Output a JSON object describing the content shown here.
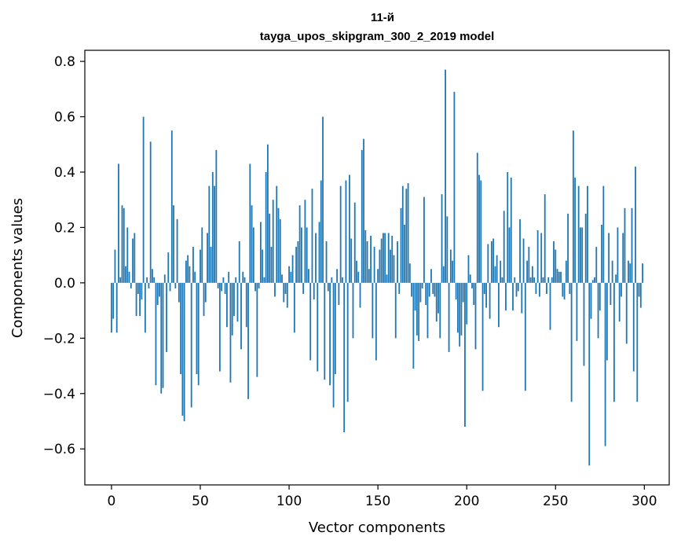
{
  "chart_data": {
    "type": "bar",
    "title": "11-й",
    "subtitle": "tayga_upos_skipgram_300_2_2019 model",
    "xlabel": "Vector components",
    "ylabel": "Components values",
    "xlim": [
      -15,
      314
    ],
    "ylim": [
      -0.73,
      0.84
    ],
    "xticks": [
      0,
      50,
      100,
      150,
      200,
      250,
      300
    ],
    "yticks": [
      -0.6,
      -0.4,
      -0.2,
      0.0,
      0.2,
      0.4,
      0.6,
      0.8
    ],
    "ytick_labels": [
      "−0.6",
      "−0.4",
      "−0.2",
      "0.0",
      "0.2",
      "0.4",
      "0.6",
      "0.8"
    ],
    "grid": false,
    "bar_color": "#1f77b4",
    "x_start": 0,
    "values": [
      -0.18,
      -0.13,
      0.12,
      -0.18,
      0.43,
      0.02,
      0.28,
      0.27,
      0.06,
      0.2,
      0.04,
      -0.02,
      0.16,
      0.18,
      -0.12,
      -0.04,
      -0.12,
      -0.06,
      0.6,
      -0.18,
      0.02,
      -0.02,
      0.51,
      0.05,
      0.02,
      -0.37,
      -0.08,
      -0.05,
      -0.4,
      -0.38,
      0.03,
      -0.25,
      0.11,
      -0.03,
      0.55,
      0.28,
      -0.02,
      0.23,
      -0.07,
      -0.33,
      -0.48,
      -0.5,
      0.08,
      0.1,
      0.06,
      -0.45,
      0.13,
      0.04,
      -0.33,
      -0.37,
      0.12,
      0.2,
      -0.12,
      -0.07,
      0.18,
      0.35,
      0.13,
      0.4,
      0.35,
      0.48,
      -0.02,
      -0.32,
      -0.03,
      0.02,
      -0.04,
      -0.16,
      0.04,
      -0.36,
      -0.19,
      -0.12,
      0.02,
      -0.14,
      0.15,
      -0.24,
      0.04,
      0.02,
      -0.16,
      -0.42,
      0.43,
      0.28,
      0.2,
      -0.03,
      -0.34,
      -0.02,
      0.22,
      0.12,
      0.02,
      0.4,
      0.5,
      0.25,
      0.13,
      0.3,
      -0.05,
      0.35,
      0.27,
      0.23,
      0.03,
      -0.07,
      -0.04,
      -0.09,
      0.06,
      0.04,
      0.1,
      -0.18,
      0.13,
      0.15,
      0.28,
      0.2,
      -0.04,
      0.3,
      0.2,
      0.05,
      -0.28,
      0.34,
      -0.06,
      0.18,
      -0.32,
      0.22,
      0.37,
      0.6,
      -0.35,
      0.15,
      -0.03,
      -0.37,
      0.02,
      -0.45,
      -0.33,
      0.05,
      -0.08,
      0.35,
      0.02,
      -0.54,
      0.37,
      -0.43,
      0.39,
      0.16,
      -0.2,
      0.29,
      0.08,
      0.04,
      -0.09,
      0.48,
      0.52,
      0.19,
      0.15,
      0.05,
      0.17,
      -0.2,
      0.13,
      -0.28,
      0.05,
      0.12,
      0.16,
      0.18,
      0.18,
      0.03,
      0.18,
      0.12,
      0.17,
      0.1,
      -0.2,
      0.15,
      -0.04,
      0.27,
      0.35,
      0.21,
      0.34,
      0.36,
      0.07,
      -0.05,
      -0.31,
      -0.1,
      -0.19,
      -0.21,
      -0.07,
      -0.02,
      0.31,
      -0.08,
      -0.2,
      -0.05,
      0.05,
      -0.04,
      -0.05,
      -0.14,
      -0.11,
      -0.2,
      0.32,
      0.06,
      0.77,
      0.24,
      -0.25,
      0.12,
      0.08,
      0.69,
      -0.06,
      -0.18,
      -0.23,
      -0.19,
      -0.07,
      -0.52,
      -0.15,
      0.1,
      0.03,
      -0.02,
      -0.08,
      -0.24,
      0.47,
      0.39,
      0.37,
      -0.39,
      -0.04,
      -0.09,
      0.14,
      -0.13,
      0.15,
      0.16,
      0.06,
      0.1,
      -0.16,
      0.08,
      0.02,
      0.26,
      -0.1,
      0.4,
      0.2,
      0.38,
      -0.1,
      0.02,
      -0.05,
      -0.03,
      0.23,
      -0.11,
      0.16,
      -0.39,
      0.08,
      0.13,
      0.02,
      0.06,
      0.02,
      -0.04,
      0.19,
      -0.05,
      0.18,
      0.02,
      0.32,
      -0.04,
      0.02,
      -0.17,
      0.02,
      0.15,
      0.12,
      0.05,
      0.04,
      0.04,
      -0.05,
      -0.06,
      0.08,
      0.25,
      -0.04,
      -0.43,
      0.55,
      0.38,
      -0.21,
      0.35,
      0.2,
      0.2,
      -0.3,
      0.25,
      0.35,
      -0.66,
      -0.13,
      0.01,
      0.02,
      0.13,
      -0.2,
      -0.1,
      0.21,
      0.35,
      -0.59,
      -0.28,
      0.18,
      -0.08,
      0.08,
      -0.43,
      0.03,
      0.2,
      -0.14,
      -0.05,
      0.18,
      0.27,
      -0.22,
      0.08,
      0.07,
      0.27,
      -0.32,
      0.42,
      -0.43,
      -0.05,
      -0.09,
      0.07
    ]
  }
}
